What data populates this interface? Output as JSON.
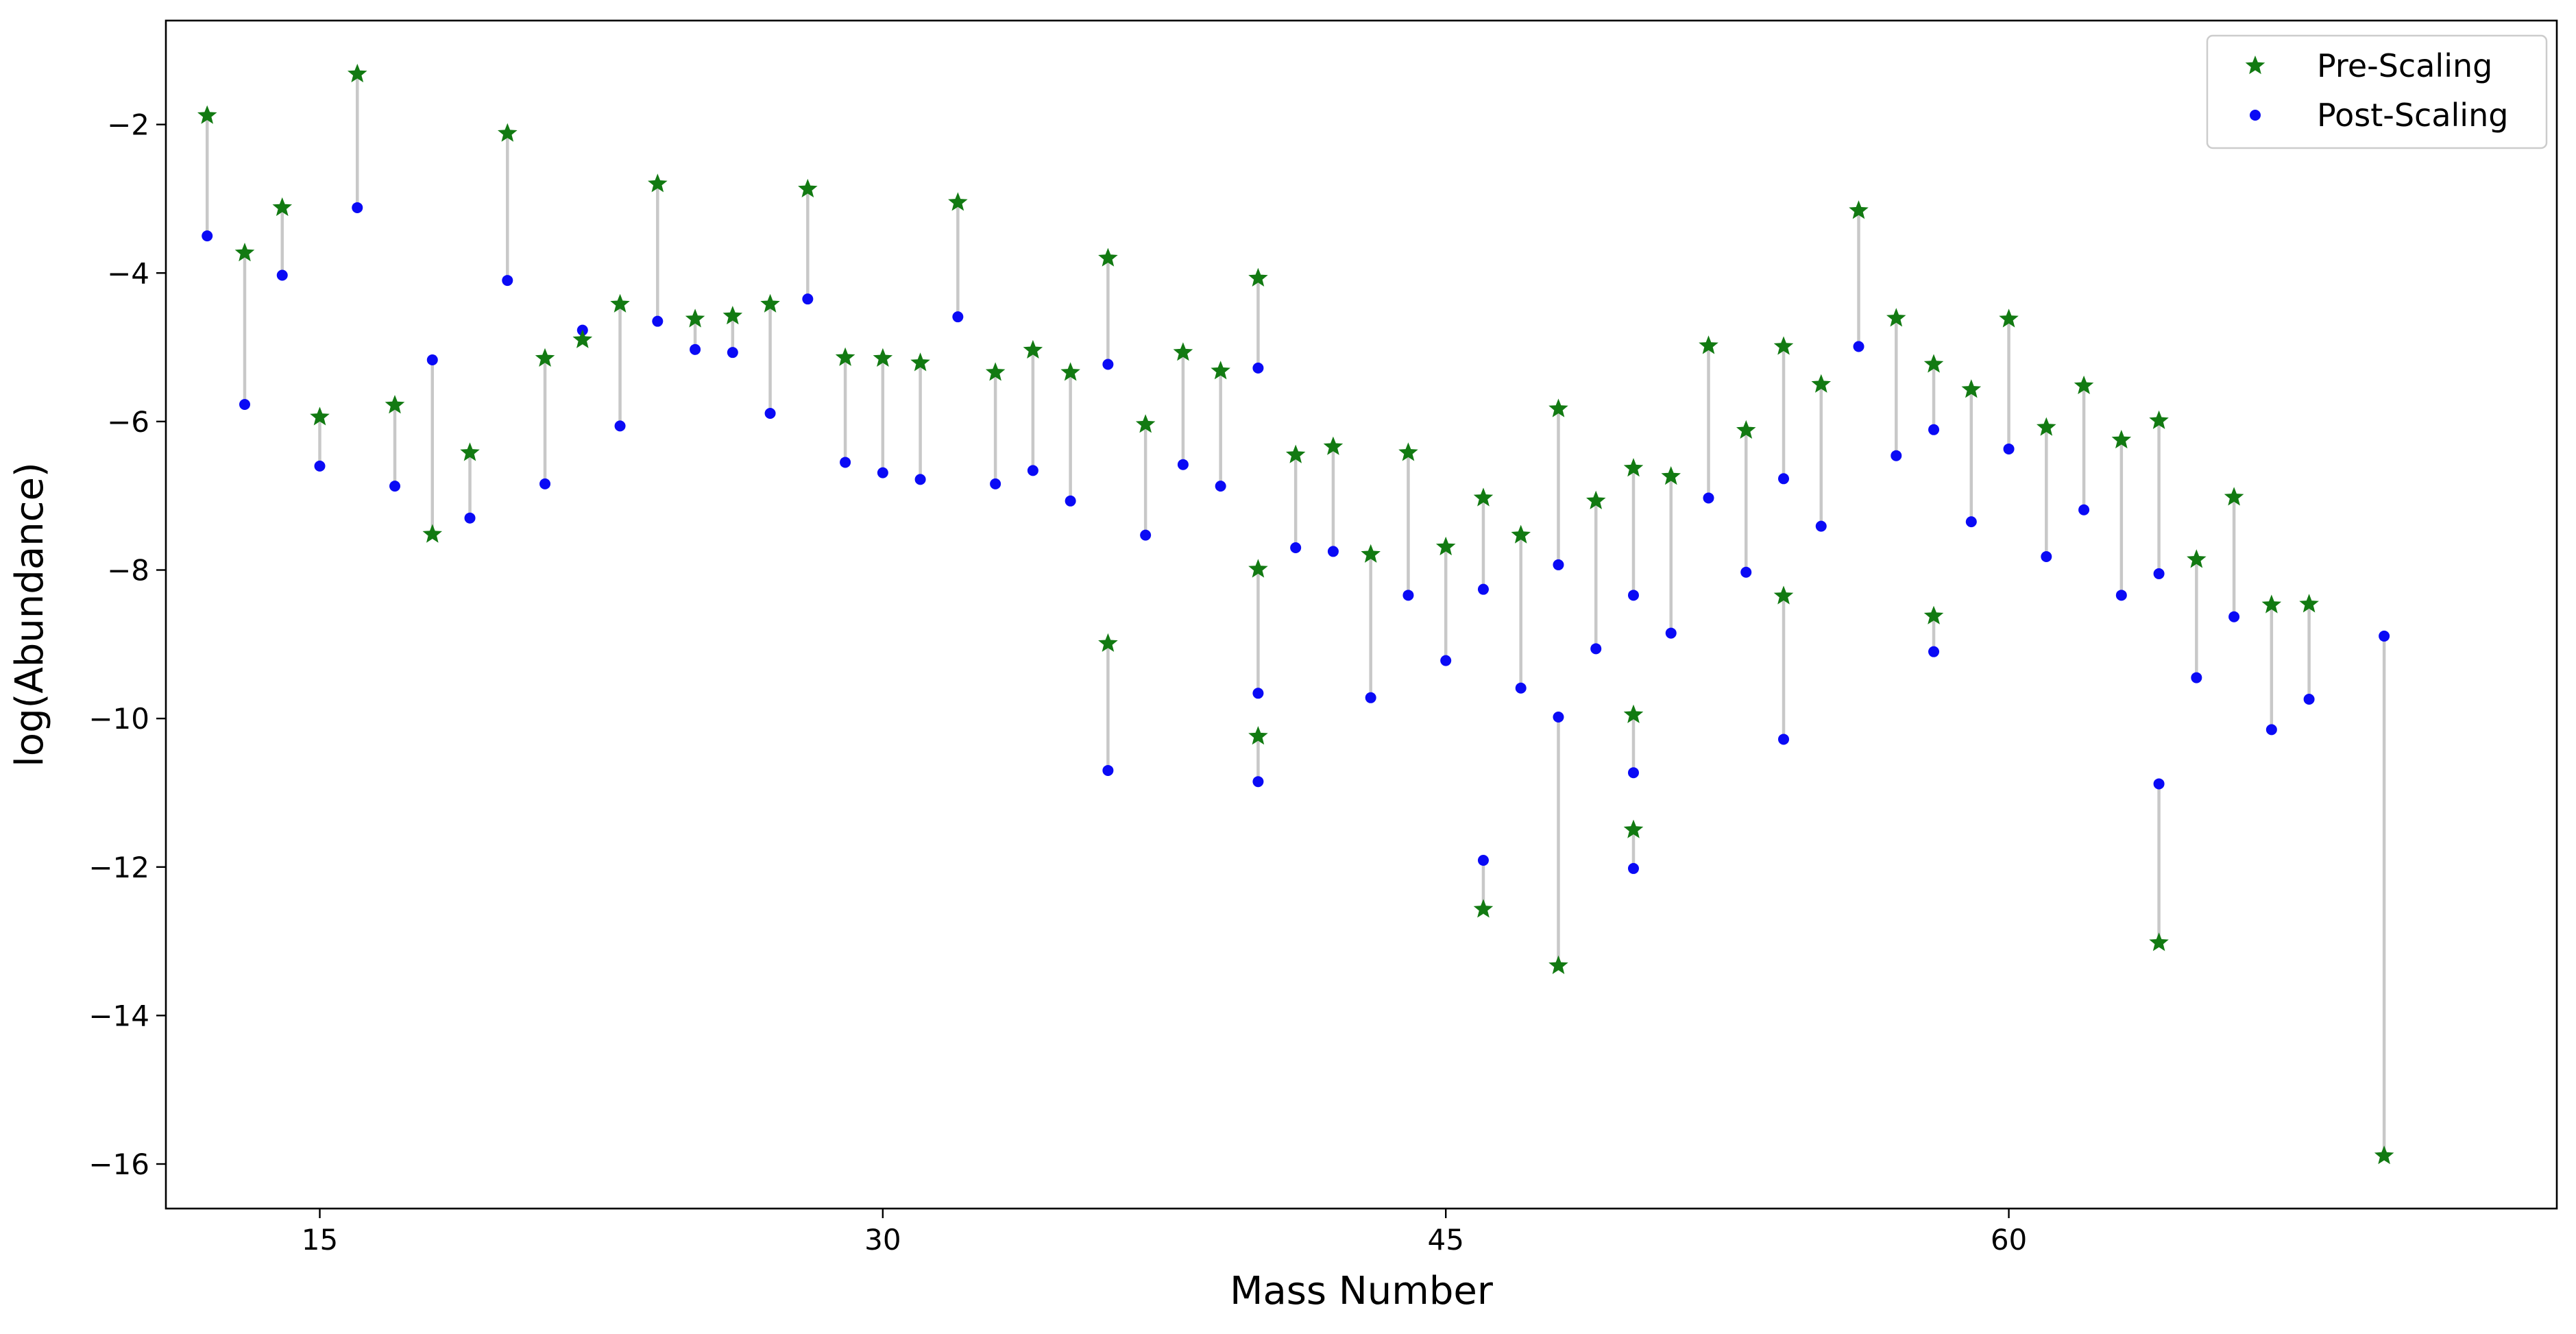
{
  "chart_data": {
    "type": "scatter",
    "xlabel": "Mass Number",
    "ylabel": "log(Abundance)",
    "xlim": [
      10.9,
      74.6
    ],
    "ylim": [
      -16.6,
      -0.6
    ],
    "xticks": [
      15,
      30,
      45,
      60
    ],
    "yticks": [
      -16,
      -14,
      -12,
      -10,
      -8,
      -6,
      -4,
      -2
    ],
    "legend_position": "top-right",
    "grid": false,
    "connector_color": "#c8c8c8",
    "series": [
      {
        "name": "Pre-Scaling",
        "marker": "star",
        "color": "#127a12",
        "points": [
          [
            12,
            -1.88
          ],
          [
            13,
            -3.73
          ],
          [
            14,
            -3.12
          ],
          [
            15,
            -5.94
          ],
          [
            16,
            -1.32
          ],
          [
            17,
            -5.78
          ],
          [
            18,
            -7.52
          ],
          [
            19,
            -6.42
          ],
          [
            20,
            -2.12
          ],
          [
            21,
            -5.15
          ],
          [
            22,
            -4.9
          ],
          [
            23,
            -4.42
          ],
          [
            24,
            -2.8
          ],
          [
            25,
            -4.62
          ],
          [
            26,
            -4.58
          ],
          [
            27,
            -4.42
          ],
          [
            28,
            -2.87
          ],
          [
            29,
            -5.14
          ],
          [
            30,
            -5.15
          ],
          [
            31,
            -5.21
          ],
          [
            32,
            -3.05
          ],
          [
            33,
            -5.34
          ],
          [
            34,
            -5.04
          ],
          [
            35,
            -5.34
          ],
          [
            36,
            -3.8
          ],
          [
            36,
            -8.99
          ],
          [
            37,
            -6.04
          ],
          [
            38,
            -5.07
          ],
          [
            39,
            -5.32
          ],
          [
            40,
            -4.07
          ],
          [
            40,
            -7.99
          ],
          [
            40,
            -10.24
          ],
          [
            41,
            -6.45
          ],
          [
            42,
            -6.34
          ],
          [
            43,
            -7.79
          ],
          [
            44,
            -6.42
          ],
          [
            45,
            -7.69
          ],
          [
            46,
            -7.03
          ],
          [
            46,
            -12.57
          ],
          [
            47,
            -7.53
          ],
          [
            48,
            -5.83
          ],
          [
            48,
            -13.33
          ],
          [
            49,
            -7.07
          ],
          [
            50,
            -6.63
          ],
          [
            50,
            -9.95
          ],
          [
            50,
            -11.5
          ],
          [
            51,
            -6.74
          ],
          [
            52,
            -4.98
          ],
          [
            53,
            -6.12
          ],
          [
            54,
            -4.99
          ],
          [
            54,
            -8.35
          ],
          [
            55,
            -5.5
          ],
          [
            56,
            -3.16
          ],
          [
            57,
            -4.61
          ],
          [
            58,
            -5.23
          ],
          [
            58,
            -8.62
          ],
          [
            59,
            -5.57
          ],
          [
            60,
            -4.62
          ],
          [
            61,
            -6.08
          ],
          [
            62,
            -5.52
          ],
          [
            63,
            -6.25
          ],
          [
            64,
            -5.99
          ],
          [
            64,
            -13.02
          ],
          [
            65,
            -7.86
          ],
          [
            66,
            -7.02
          ],
          [
            67,
            -8.47
          ],
          [
            68,
            -8.46
          ],
          [
            70,
            -15.89
          ]
        ]
      },
      {
        "name": "Post-Scaling",
        "marker": "circle",
        "color": "#0a0af5",
        "points": [
          [
            12,
            -3.5
          ],
          [
            13,
            -5.77
          ],
          [
            14,
            -4.03
          ],
          [
            15,
            -6.6
          ],
          [
            16,
            -3.12
          ],
          [
            17,
            -6.87
          ],
          [
            18,
            -5.17
          ],
          [
            19,
            -7.3
          ],
          [
            20,
            -4.1
          ],
          [
            21,
            -6.84
          ],
          [
            22,
            -4.77
          ],
          [
            23,
            -6.06
          ],
          [
            24,
            -4.65
          ],
          [
            25,
            -5.03
          ],
          [
            26,
            -5.07
          ],
          [
            27,
            -5.89
          ],
          [
            28,
            -4.35
          ],
          [
            29,
            -6.55
          ],
          [
            30,
            -6.69
          ],
          [
            31,
            -6.78
          ],
          [
            32,
            -4.59
          ],
          [
            33,
            -6.84
          ],
          [
            34,
            -6.66
          ],
          [
            35,
            -7.07
          ],
          [
            36,
            -5.23
          ],
          [
            36,
            -10.7
          ],
          [
            37,
            -7.53
          ],
          [
            38,
            -6.58
          ],
          [
            39,
            -6.87
          ],
          [
            40,
            -5.28
          ],
          [
            40,
            -9.66
          ],
          [
            40,
            -10.85
          ],
          [
            41,
            -7.7
          ],
          [
            42,
            -7.75
          ],
          [
            43,
            -9.72
          ],
          [
            44,
            -8.34
          ],
          [
            45,
            -9.22
          ],
          [
            46,
            -8.26
          ],
          [
            46,
            -11.91
          ],
          [
            47,
            -9.59
          ],
          [
            48,
            -7.93
          ],
          [
            48,
            -9.98
          ],
          [
            49,
            -9.06
          ],
          [
            50,
            -8.34
          ],
          [
            50,
            -10.73
          ],
          [
            50,
            -12.02
          ],
          [
            51,
            -8.85
          ],
          [
            52,
            -7.03
          ],
          [
            53,
            -8.03
          ],
          [
            54,
            -6.77
          ],
          [
            54,
            -10.28
          ],
          [
            55,
            -7.41
          ],
          [
            56,
            -4.99
          ],
          [
            57,
            -6.46
          ],
          [
            58,
            -6.11
          ],
          [
            58,
            -9.1
          ],
          [
            59,
            -7.35
          ],
          [
            60,
            -6.37
          ],
          [
            61,
            -7.82
          ],
          [
            62,
            -7.19
          ],
          [
            63,
            -8.34
          ],
          [
            64,
            -8.05
          ],
          [
            64,
            -10.88
          ],
          [
            65,
            -9.45
          ],
          [
            66,
            -8.63
          ],
          [
            67,
            -10.15
          ],
          [
            68,
            -9.74
          ],
          [
            70,
            -8.89
          ]
        ]
      }
    ]
  }
}
